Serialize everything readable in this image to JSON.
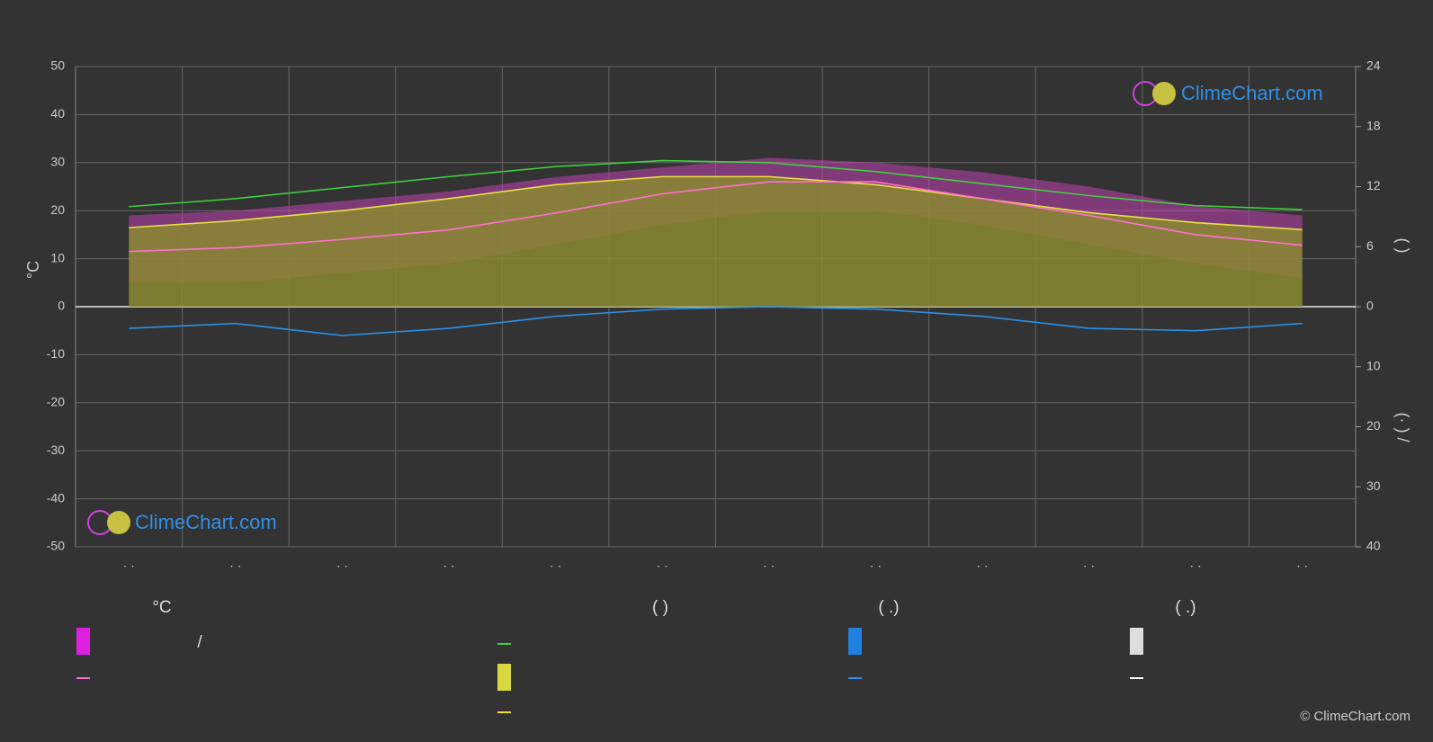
{
  "chart_data": {
    "type": "climate",
    "ylabel": "°C",
    "y2label": "(          )",
    "y3label": "(·   )    /",
    "watermark": "ClimeChart.com",
    "copyright": "© ClimeChart.com",
    "legend_headers": [
      "°C",
      "/",
      "(          )",
      "(   .)",
      "(   .)"
    ],
    "categories": [
      "· ·",
      "· ·",
      "· ·",
      "· ·",
      "· ·",
      "· ·",
      "· ·",
      "· ·",
      "· ·",
      "· ·",
      "· ·",
      "· ·"
    ],
    "ylim": [
      -50,
      50
    ],
    "yticks": [
      -50,
      -40,
      -30,
      -20,
      -10,
      0,
      10,
      20,
      30,
      40,
      50
    ],
    "y2lim": [
      0,
      24
    ],
    "y2ticks": [
      0,
      6,
      12,
      18,
      24
    ],
    "y3lim": [
      0,
      40
    ],
    "y3ticks": [
      0,
      10,
      20,
      30,
      40
    ],
    "grid": true,
    "series": [
      {
        "kind": "temp_range_max",
        "color": "#c040b0",
        "values": [
          19,
          20,
          22,
          24,
          27,
          29,
          31,
          30,
          28,
          25,
          21,
          19
        ]
      },
      {
        "kind": "temp_range_min",
        "color": "#c040b0",
        "values": [
          5,
          5,
          7,
          9,
          13,
          17,
          20,
          20,
          17,
          13,
          9,
          6
        ]
      },
      {
        "kind": "sunshine_area",
        "axis": "y2",
        "color": "#8a8a30",
        "values": [
          7.9,
          8.6,
          9.6,
          10.8,
          12.2,
          13,
          13,
          12.2,
          10.8,
          9.4,
          8.4,
          7.7
        ]
      },
      {
        "kind": "daylight",
        "axis": "y2",
        "color": "#40d040",
        "values": [
          10.0,
          10.8,
          11.9,
          13.0,
          14.0,
          14.6,
          14.4,
          13.5,
          12.3,
          11.1,
          10.1,
          9.7
        ]
      },
      {
        "kind": "sunshine",
        "axis": "y2",
        "color": "#e8e040",
        "values": [
          7.9,
          8.6,
          9.6,
          10.8,
          12.2,
          13,
          13,
          12.2,
          10.8,
          9.4,
          8.4,
          7.7
        ]
      },
      {
        "kind": "mean_temp",
        "color": "#ff70d0",
        "values": [
          11.5,
          12.3,
          14,
          16,
          19.5,
          23.5,
          26,
          26,
          22.5,
          19,
          15,
          12.8
        ]
      },
      {
        "kind": "precip",
        "axis": "y3",
        "color": "#2a90e8",
        "values": [
          3.6,
          2.8,
          4.8,
          3.6,
          1.6,
          0.4,
          0,
          0.4,
          1.6,
          3.6,
          4,
          2.8
        ]
      }
    ]
  }
}
